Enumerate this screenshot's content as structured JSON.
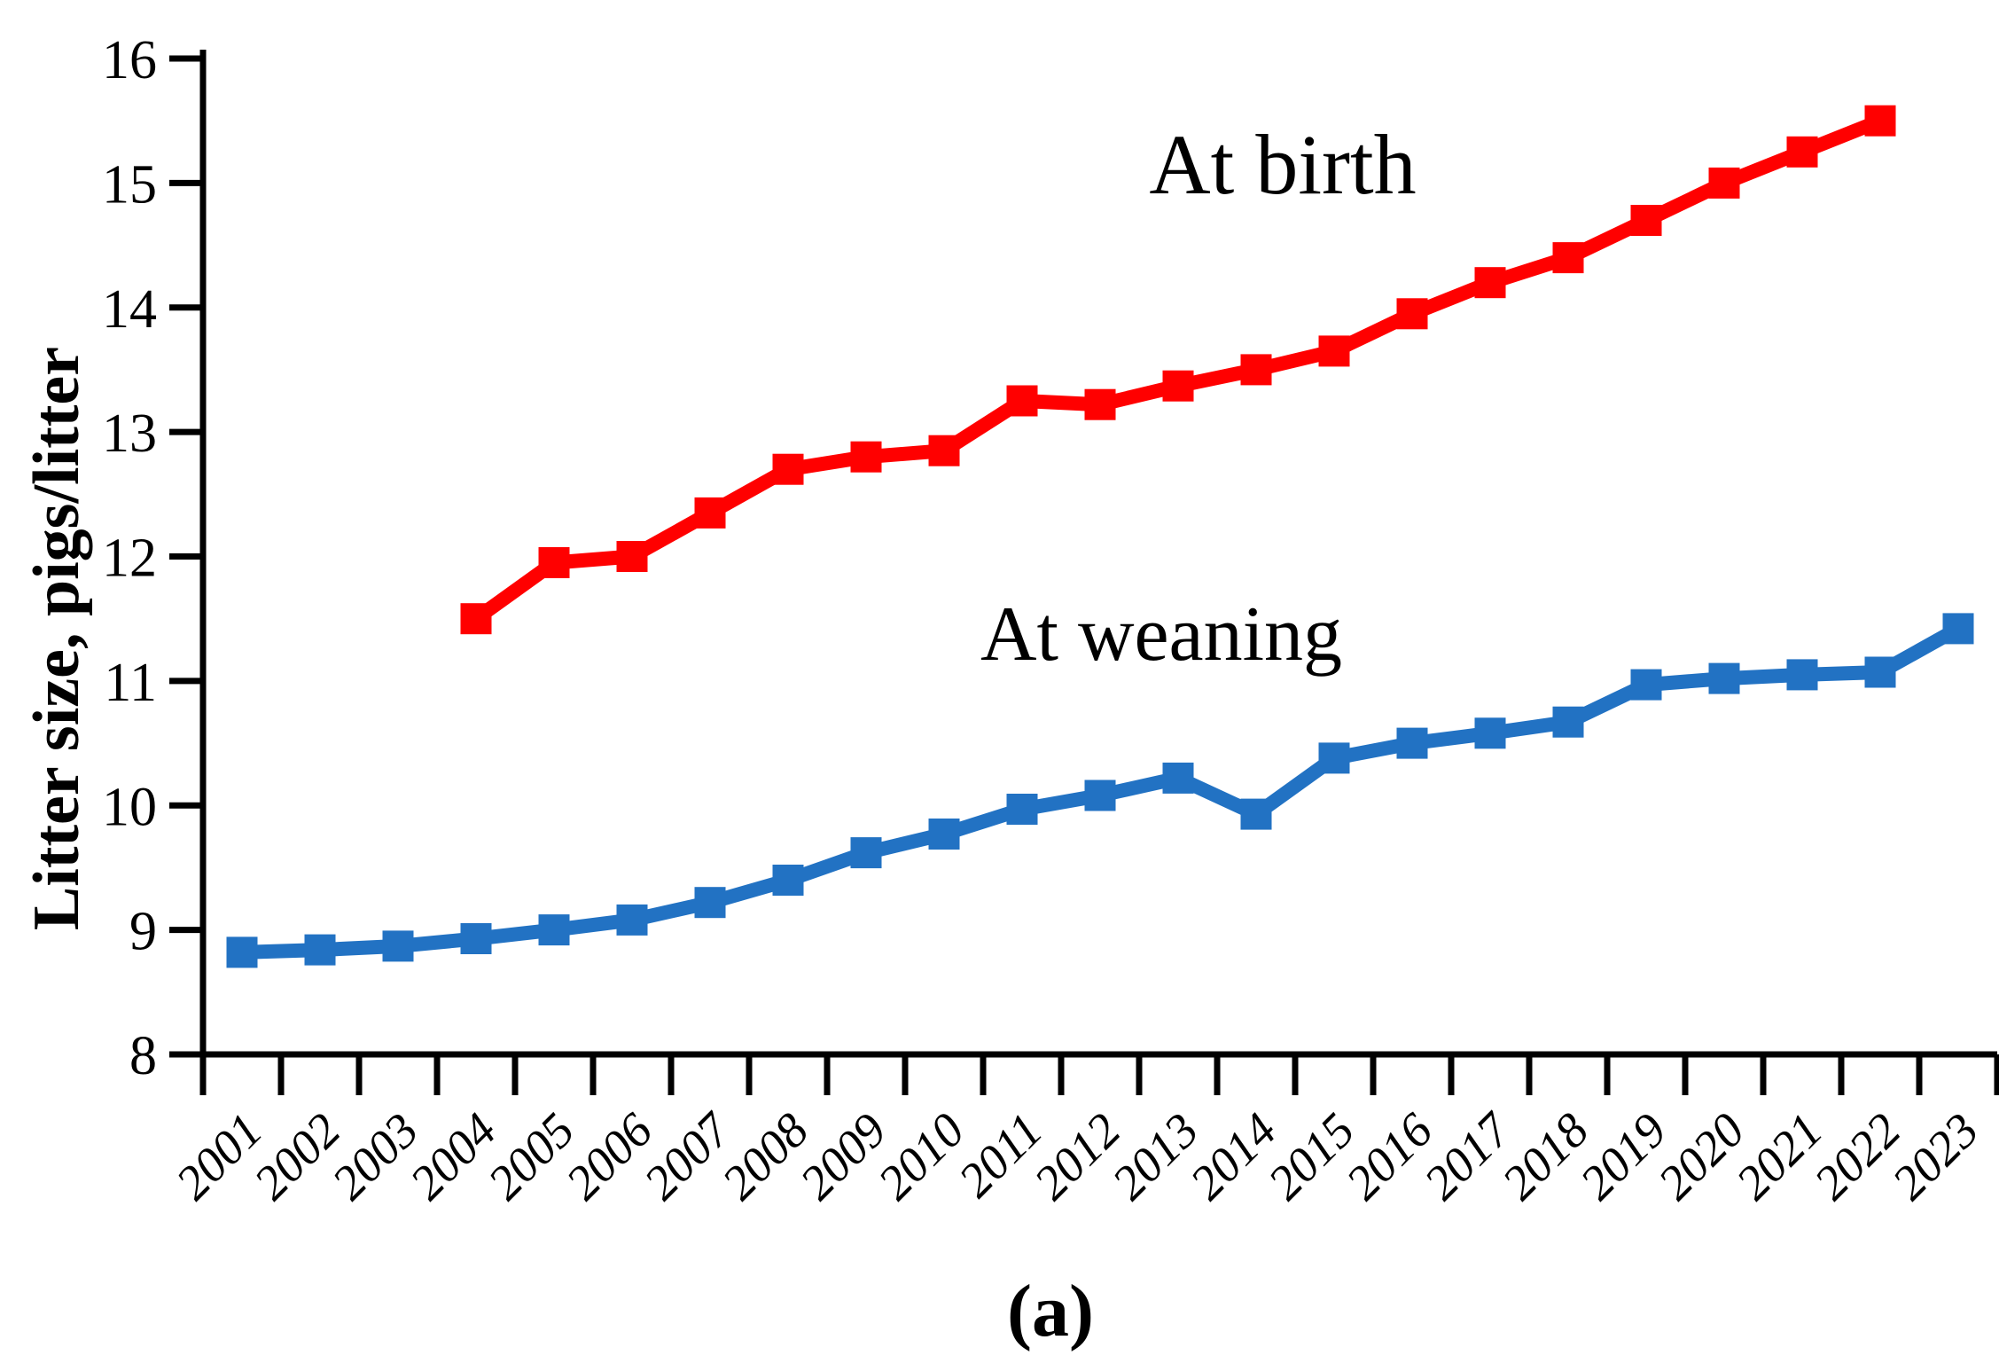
{
  "figure": {
    "ylabel": "Litter size, pigs/litter",
    "caption": "(a)",
    "annotations": [
      {
        "id": "at-birth",
        "text": "At birth"
      },
      {
        "id": "at-weaning",
        "text": "At weaning"
      }
    ]
  },
  "chart_data": {
    "type": "line",
    "title": "",
    "xlabel": "",
    "ylabel": "Litter size, pigs/litter",
    "ylim": [
      8,
      16
    ],
    "yticks": [
      8,
      9,
      10,
      11,
      12,
      13,
      14,
      15,
      16
    ],
    "grid": false,
    "legend_position": "inline-annotations",
    "categories": [
      "2001",
      "2002",
      "2003",
      "2004",
      "2005",
      "2006",
      "2007",
      "2008",
      "2009",
      "2010",
      "2011",
      "2012",
      "2013",
      "2014",
      "2015",
      "2016",
      "2017",
      "2018",
      "2019",
      "2020",
      "2021",
      "2022",
      "2023"
    ],
    "series": [
      {
        "name": "At birth",
        "color": "#FF0000",
        "marker": "square",
        "values": [
          null,
          null,
          null,
          11.5,
          11.95,
          12.0,
          12.35,
          12.7,
          12.8,
          12.85,
          13.25,
          13.22,
          13.37,
          13.5,
          13.65,
          13.95,
          14.2,
          14.4,
          14.7,
          15.0,
          15.25,
          15.5,
          null
        ]
      },
      {
        "name": "At weaning",
        "color": "#2272C3",
        "marker": "square",
        "values": [
          8.82,
          8.84,
          8.87,
          8.93,
          9.0,
          9.08,
          9.22,
          9.4,
          9.62,
          9.77,
          9.97,
          10.08,
          10.22,
          9.93,
          10.38,
          10.5,
          10.58,
          10.67,
          10.97,
          11.02,
          11.05,
          11.07,
          11.42
        ]
      }
    ],
    "axis_color": "#000000"
  }
}
